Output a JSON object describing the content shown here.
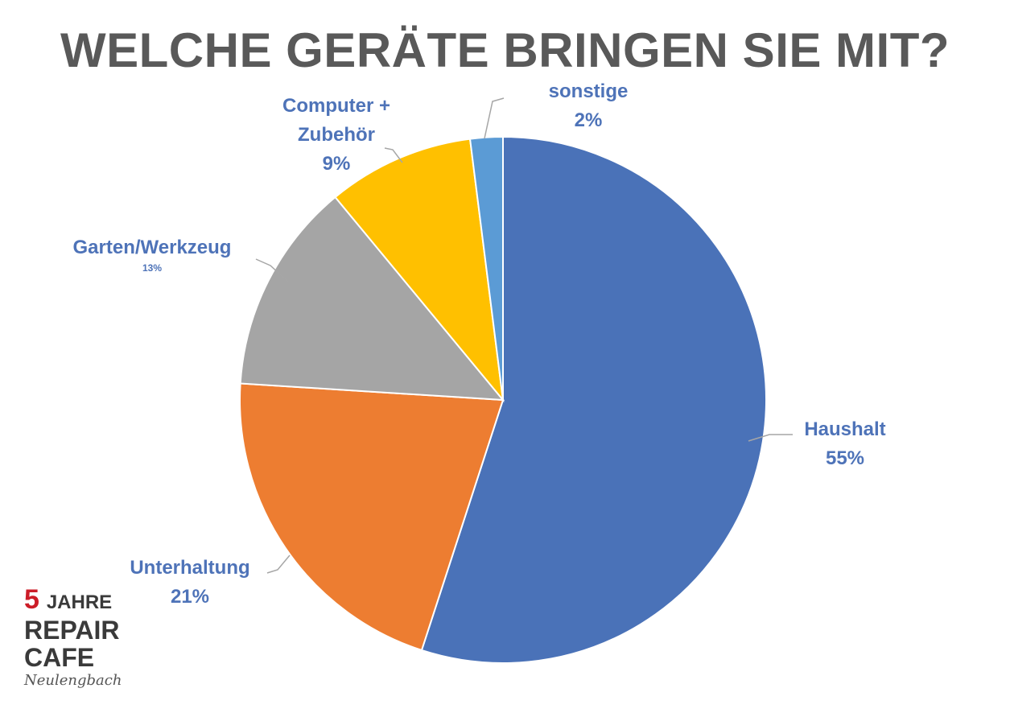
{
  "chart_data": {
    "type": "pie",
    "title": "WELCHE GERÄTE BRINGEN SIE MIT?",
    "slices": [
      {
        "name": "Haushalt",
        "value": 55,
        "label": "55%",
        "color": "#4a72b8"
      },
      {
        "name": "Unterhaltung",
        "value": 21,
        "label": "21%",
        "color": "#ed7d31"
      },
      {
        "name": "Garten/Werkzeug",
        "value": 13,
        "label": "13%",
        "color": "#a5a5a5"
      },
      {
        "name": "Computer + Zubehör",
        "value": 9,
        "label": "9%",
        "color": "#ffc000"
      },
      {
        "name": "sonstige",
        "value": 2,
        "label": "2%",
        "color": "#5b9bd5"
      }
    ],
    "label_color": "#4e73b8",
    "start_angle": "12 o'clock",
    "direction": "clockwise",
    "legend": "none"
  },
  "labels": {
    "haushalt": {
      "name": "Haushalt",
      "pct": "55%"
    },
    "unterhaltung": {
      "name": "Unterhaltung",
      "pct": "21%"
    },
    "garten": {
      "name": "Garten/Werkzeug",
      "pct": "13%"
    },
    "computer": {
      "line1": "Computer +",
      "line2": "Zubehör",
      "pct": "9%"
    },
    "sonstige": {
      "name": "sonstige",
      "pct": "2%"
    }
  },
  "badge": {
    "number": "5",
    "word1": "JAHRE",
    "word2": "REPAIR",
    "word3": "CAFE",
    "place": "Neulengbach"
  }
}
